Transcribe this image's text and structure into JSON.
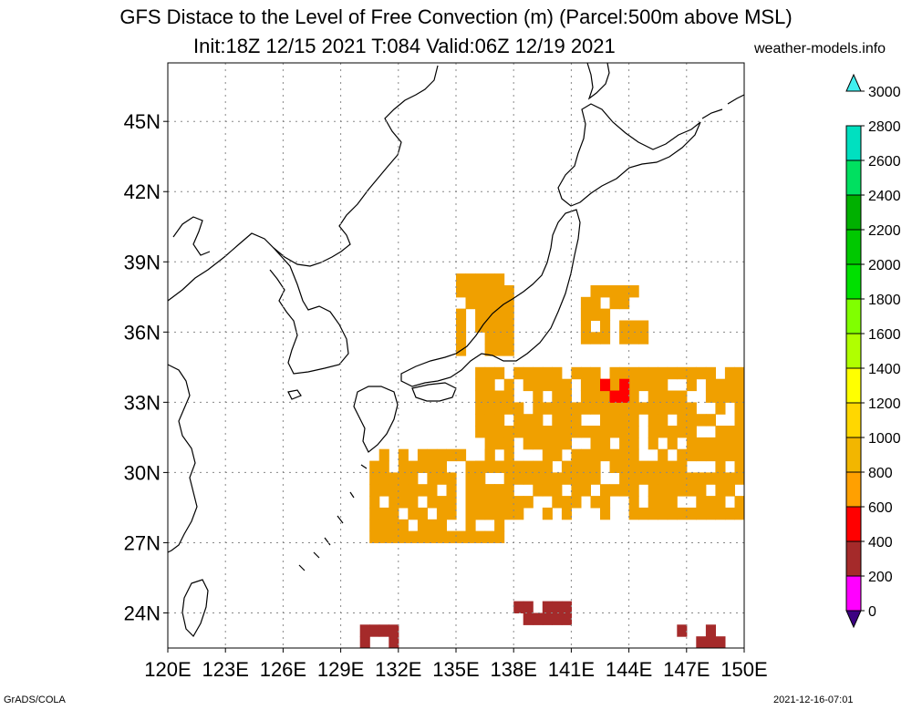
{
  "header": {
    "title_line1": "GFS Distace to the Level of Free Convection (m) (Parcel:500m above MSL)",
    "title_line2": "Init:18Z 12/15 2021 T:084 Valid:06Z 12/19 2021",
    "site": "weather-models.info"
  },
  "footer": {
    "left": "GrADS/COLA",
    "right": "2021-12-16-07:01"
  },
  "map": {
    "lon_range": [
      120,
      150
    ],
    "lat_range": [
      22.5,
      47.5
    ],
    "lon_ticks": [
      "120E",
      "123E",
      "126E",
      "129E",
      "132E",
      "135E",
      "138E",
      "141E",
      "144E",
      "147E",
      "150E"
    ],
    "lat_ticks": [
      "24N",
      "27N",
      "30N",
      "33N",
      "36N",
      "39N",
      "42N",
      "45N"
    ],
    "grid": true
  },
  "colorbar": {
    "labels": [
      "0",
      "200",
      "400",
      "600",
      "800",
      "1000",
      "1200",
      "1400",
      "1600",
      "1800",
      "2000",
      "2200",
      "2400",
      "2600",
      "2800",
      "3000"
    ],
    "colors": [
      "#3c0082",
      "#ff00ff",
      "#a52a2a",
      "#ff0000",
      "#ffa000",
      "#f2b600",
      "#ffd700",
      "#ffff00",
      "#b0ff00",
      "#80ff00",
      "#00e000",
      "#00c800",
      "#00b000",
      "#00e060",
      "#00e0c0",
      "#40f0f0"
    ]
  },
  "fields": [
    {
      "color": "#f0a000",
      "lon": [
        130.5,
        137.5
      ],
      "lat": [
        27,
        31
      ],
      "kind": "blob"
    },
    {
      "color": "#f0a000",
      "lon": [
        136,
        150
      ],
      "lat": [
        28,
        34.5
      ],
      "kind": "blob"
    },
    {
      "color": "#f0a000",
      "lon": [
        141.5,
        145
      ],
      "lat": [
        35.5,
        38
      ],
      "kind": "blob"
    },
    {
      "color": "#f0a000",
      "lon": [
        135,
        138
      ],
      "lat": [
        35,
        38.5
      ],
      "kind": "blob"
    },
    {
      "color": "#a52a2a",
      "lon": [
        138,
        141
      ],
      "lat": [
        23.5,
        24.5
      ],
      "kind": "blob"
    },
    {
      "color": "#a52a2a",
      "lon": [
        130,
        132
      ],
      "lat": [
        22.5,
        23.5
      ],
      "kind": "blob"
    },
    {
      "color": "#a52a2a",
      "lon": [
        146,
        149
      ],
      "lat": [
        22.5,
        23.3
      ],
      "kind": "blob"
    },
    {
      "color": "#ff0000",
      "lon": [
        142.5,
        144
      ],
      "lat": [
        33,
        34
      ],
      "kind": "blob"
    }
  ]
}
